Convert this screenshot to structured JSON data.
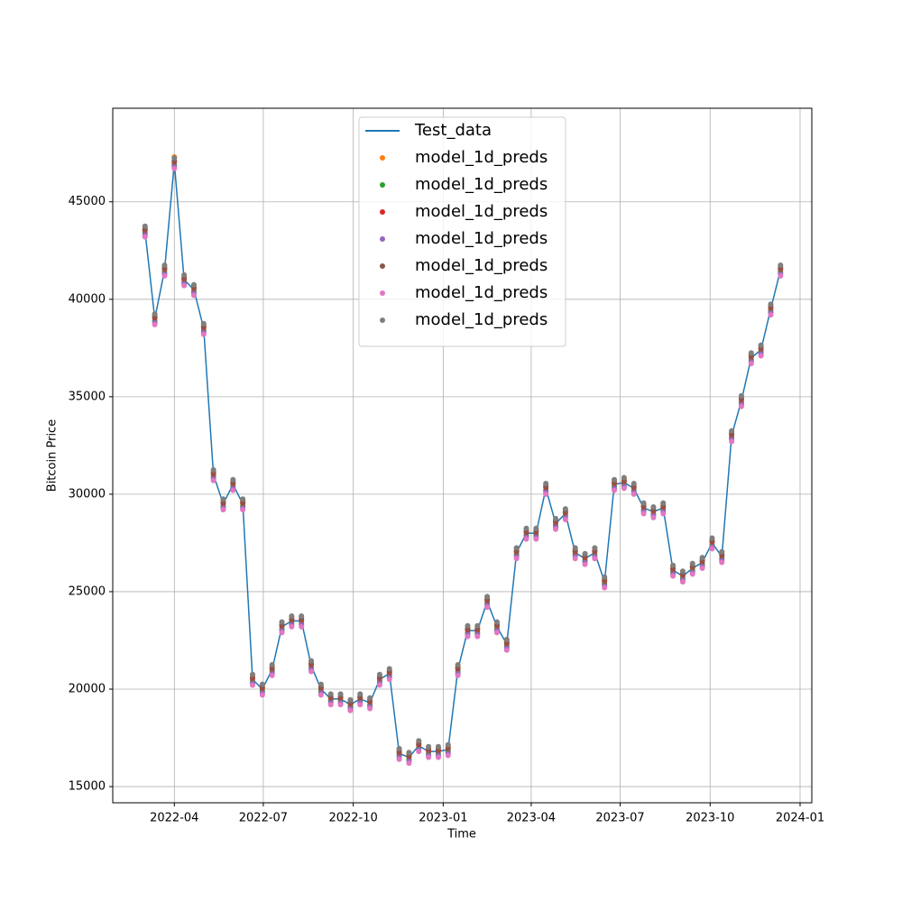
{
  "chart_data": {
    "type": "line",
    "xlabel": "Time",
    "ylabel": "Bitcoin Price",
    "x": [
      "2022-03-02",
      "2022-03-12",
      "2022-03-22",
      "2022-04-01",
      "2022-04-11",
      "2022-04-21",
      "2022-05-01",
      "2022-05-11",
      "2022-05-21",
      "2022-05-31",
      "2022-06-10",
      "2022-06-20",
      "2022-06-30",
      "2022-07-10",
      "2022-07-20",
      "2022-07-30",
      "2022-08-09",
      "2022-08-19",
      "2022-08-29",
      "2022-09-08",
      "2022-09-18",
      "2022-09-28",
      "2022-10-08",
      "2022-10-18",
      "2022-10-28",
      "2022-11-07",
      "2022-11-17",
      "2022-11-27",
      "2022-12-07",
      "2022-12-17",
      "2022-12-27",
      "2023-01-06",
      "2023-01-16",
      "2023-01-26",
      "2023-02-05",
      "2023-02-15",
      "2023-02-25",
      "2023-03-07",
      "2023-03-17",
      "2023-03-27",
      "2023-04-06",
      "2023-04-16",
      "2023-04-26",
      "2023-05-06",
      "2023-05-16",
      "2023-05-26",
      "2023-06-05",
      "2023-06-15",
      "2023-06-25",
      "2023-07-05",
      "2023-07-15",
      "2023-07-25",
      "2023-08-04",
      "2023-08-14",
      "2023-08-24",
      "2023-09-03",
      "2023-09-13",
      "2023-09-23",
      "2023-10-03",
      "2023-10-13",
      "2023-10-23",
      "2023-11-02",
      "2023-11-12",
      "2023-11-22",
      "2023-12-02",
      "2023-12-12"
    ],
    "series": [
      {
        "name": "Test_data",
        "color": "#1f77b4",
        "style": "line",
        "values": [
          43500,
          39000,
          41500,
          47000,
          41000,
          40500,
          38500,
          31000,
          29500,
          30500,
          29500,
          20500,
          20000,
          21000,
          23200,
          23500,
          23500,
          21200,
          20000,
          19500,
          19500,
          19200,
          19500,
          19300,
          20500,
          20800,
          16700,
          16500,
          17100,
          16800,
          16800,
          16900,
          21000,
          23000,
          23000,
          24500,
          23200,
          22300,
          27000,
          28000,
          28000,
          30300,
          28500,
          29000,
          27000,
          26700,
          27000,
          25500,
          30500,
          30600,
          30300,
          29300,
          29100,
          29300,
          26100,
          25800,
          26200,
          26500,
          27500,
          26800,
          33000,
          34800,
          37000,
          37400,
          39500,
          41500
        ]
      },
      {
        "name": "model_1d_preds",
        "color": "#ff7f0e",
        "style": "points",
        "values": [
          43700,
          39200,
          41700,
          47300,
          41200,
          40700,
          38700,
          31200,
          29700,
          30700,
          29700,
          20700,
          20200,
          21200,
          23400,
          23700,
          23700,
          21400,
          20200,
          19700,
          19700,
          19400,
          19700,
          19500,
          20700,
          21000,
          16900,
          16700,
          17300,
          17000,
          17000,
          17100,
          21200,
          23200,
          23200,
          24700,
          23400,
          22500,
          27200,
          28200,
          28200,
          30500,
          28700,
          29200,
          27200,
          26900,
          27200,
          25700,
          30700,
          30800,
          30500,
          29500,
          29300,
          29500,
          26300,
          26000,
          26400,
          26700,
          27700,
          27000,
          33200,
          35000,
          37200,
          37600,
          39700,
          41700
        ]
      },
      {
        "name": "model_1d_preds",
        "color": "#2ca02c",
        "style": "points",
        "values": [
          43400,
          38900,
          41400,
          46900,
          40900,
          40400,
          38400,
          30900,
          29400,
          30400,
          29400,
          20400,
          19900,
          20900,
          23100,
          23400,
          23400,
          21100,
          19900,
          19400,
          19400,
          19100,
          19400,
          19200,
          20400,
          20700,
          16600,
          16400,
          17000,
          16700,
          16700,
          16800,
          20900,
          22900,
          22900,
          24400,
          23100,
          22200,
          26900,
          27900,
          27900,
          30200,
          28400,
          28900,
          26900,
          26600,
          26900,
          25400,
          30400,
          30500,
          30200,
          29200,
          29000,
          29200,
          26000,
          25700,
          26100,
          26400,
          27400,
          26700,
          32900,
          34700,
          36900,
          37300,
          39400,
          41400
        ]
      },
      {
        "name": "model_1d_preds",
        "color": "#d62728",
        "style": "points",
        "values": [
          43550,
          39050,
          41550,
          47050,
          41050,
          40550,
          38550,
          31050,
          29550,
          30550,
          29550,
          20550,
          20050,
          21050,
          23250,
          23550,
          23550,
          21250,
          20050,
          19550,
          19550,
          19250,
          19550,
          19350,
          20550,
          20850,
          16750,
          16550,
          17150,
          16850,
          16850,
          16950,
          21050,
          23050,
          23050,
          24550,
          23250,
          22350,
          27050,
          28050,
          28050,
          30350,
          28550,
          29050,
          27050,
          26750,
          27050,
          25550,
          30550,
          30650,
          30350,
          29350,
          29150,
          29350,
          26150,
          25850,
          26250,
          26550,
          27550,
          26850,
          33050,
          34850,
          37050,
          37450,
          39550,
          41550
        ]
      },
      {
        "name": "model_1d_preds",
        "color": "#9467bd",
        "style": "points",
        "values": [
          43300,
          38800,
          41300,
          46800,
          40800,
          40300,
          38300,
          30800,
          29300,
          30300,
          29300,
          20300,
          19800,
          20800,
          23000,
          23300,
          23300,
          21000,
          19800,
          19300,
          19300,
          19000,
          19300,
          19100,
          20300,
          20600,
          16500,
          16300,
          16900,
          16600,
          16600,
          16700,
          20800,
          22800,
          22800,
          24300,
          23000,
          22100,
          26800,
          27800,
          27800,
          30100,
          28300,
          28800,
          26800,
          26500,
          26800,
          25300,
          30300,
          30400,
          30100,
          29100,
          28900,
          29100,
          25900,
          25600,
          26000,
          26300,
          27300,
          26600,
          32800,
          34600,
          36800,
          37200,
          39300,
          41300
        ]
      },
      {
        "name": "model_1d_preds",
        "color": "#8c564b",
        "style": "points",
        "values": [
          43600,
          39100,
          41600,
          47100,
          41100,
          40600,
          38600,
          31100,
          29600,
          30600,
          29600,
          20600,
          20100,
          21100,
          23300,
          23600,
          23600,
          21300,
          20100,
          19600,
          19600,
          19300,
          19600,
          19400,
          20600,
          20900,
          16800,
          16600,
          17200,
          16900,
          16900,
          17000,
          21100,
          23100,
          23100,
          24600,
          23300,
          22400,
          27100,
          28100,
          28100,
          30400,
          28600,
          29100,
          27100,
          26800,
          27100,
          25600,
          30600,
          30700,
          30400,
          29400,
          29200,
          29400,
          26200,
          25900,
          26300,
          26600,
          27600,
          26900,
          33100,
          34900,
          37100,
          37500,
          39600,
          41600
        ]
      },
      {
        "name": "model_1d_preds",
        "color": "#e377c2",
        "style": "points",
        "values": [
          43200,
          38700,
          41200,
          46700,
          40700,
          40200,
          38200,
          30700,
          29200,
          30200,
          29200,
          20200,
          19700,
          20700,
          22900,
          23200,
          23200,
          20900,
          19700,
          19200,
          19200,
          18900,
          19200,
          19000,
          20200,
          20500,
          16400,
          16200,
          16800,
          16500,
          16500,
          16600,
          20700,
          22700,
          22700,
          24200,
          22900,
          22000,
          26700,
          27700,
          27700,
          30000,
          28200,
          28700,
          26700,
          26400,
          26700,
          25200,
          30200,
          30300,
          30000,
          29000,
          28800,
          29000,
          25800,
          25500,
          25900,
          26200,
          27200,
          26500,
          32700,
          34500,
          36700,
          37100,
          39200,
          41200
        ]
      },
      {
        "name": "model_1d_preds",
        "color": "#7f7f7f",
        "style": "points",
        "values": [
          43750,
          39250,
          41750,
          47250,
          41250,
          40750,
          38750,
          31250,
          29750,
          30750,
          29750,
          20750,
          20250,
          21250,
          23450,
          23750,
          23750,
          21450,
          20250,
          19750,
          19750,
          19450,
          19750,
          19550,
          20750,
          21050,
          16950,
          16750,
          17350,
          17050,
          17050,
          17150,
          21250,
          23250,
          23250,
          24750,
          23450,
          22550,
          27250,
          28250,
          28250,
          30550,
          28750,
          29250,
          27250,
          26950,
          27250,
          25750,
          30750,
          30850,
          30550,
          29550,
          29350,
          29550,
          26350,
          26050,
          26450,
          26750,
          27750,
          27050,
          33250,
          35050,
          37250,
          37650,
          39750,
          41750
        ]
      }
    ],
    "xlim": [
      "2022-01-28",
      "2024-01-13"
    ],
    "xticks": [
      {
        "value": "2022-04-01",
        "label": "2022-04"
      },
      {
        "value": "2022-07-01",
        "label": "2022-07"
      },
      {
        "value": "2022-10-01",
        "label": "2022-10"
      },
      {
        "value": "2023-01-01",
        "label": "2023-01"
      },
      {
        "value": "2023-04-01",
        "label": "2023-04"
      },
      {
        "value": "2023-07-01",
        "label": "2023-07"
      },
      {
        "value": "2023-10-01",
        "label": "2023-10"
      },
      {
        "value": "2024-01-01",
        "label": "2024-01"
      }
    ],
    "ylim": [
      14170,
      49800
    ],
    "yticks": [
      15000,
      20000,
      25000,
      30000,
      35000,
      40000,
      45000
    ],
    "grid": true,
    "legend": "upper center"
  }
}
